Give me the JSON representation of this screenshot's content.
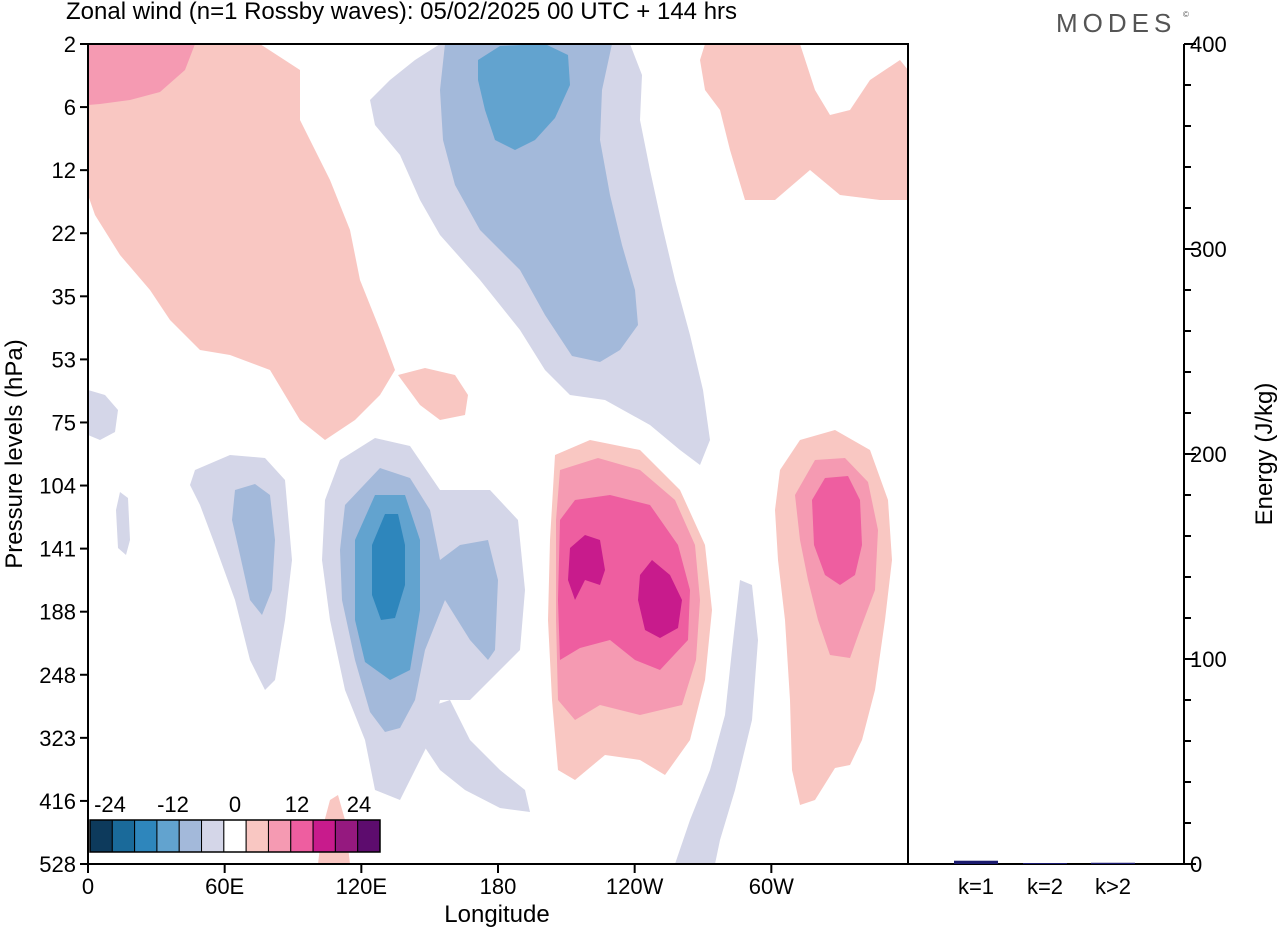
{
  "header": {
    "title": "Zonal wind (n=1 Rossby waves):  05/02/2025  00 UTC  + 144 hrs",
    "brand": "MODES",
    "brand_mark": "©"
  },
  "chart_data": [
    {
      "type": "heatmap",
      "title": "Zonal wind (n=1 Rossby waves):  05/02/2025  00 UTC  + 144 hrs",
      "xlabel": "Longitude",
      "ylabel": "Pressure levels (hPa)",
      "x_ticks": [
        "0",
        "60E",
        "120E",
        "180",
        "120W",
        "60W"
      ],
      "y_ticks": [
        "2",
        "6",
        "12",
        "22",
        "35",
        "53",
        "75",
        "104",
        "141",
        "188",
        "248",
        "323",
        "416",
        "528"
      ],
      "colorbar": {
        "tick_labels": [
          "-24",
          "-12",
          "0",
          "12",
          "24"
        ],
        "colors": [
          "#0d3a5c",
          "#1a6a9a",
          "#2e86bc",
          "#62a3cf",
          "#a3b9da",
          "#d4d6e8",
          "#ffffff",
          "#f9c7c2",
          "#f59ab2",
          "#ee5ea0",
          "#c81b8c",
          "#95197f",
          "#5d0c6e"
        ]
      },
      "colors": {
        "neg_weak": "#d4d6e8",
        "neg_mid": "#a3b9da",
        "neg_strong": "#62a3cf",
        "neg_max": "#2e86bc",
        "pos_weak": "#f9c7c2",
        "pos_mid": "#f59ab2",
        "pos_strong": "#ee5ea0",
        "pos_max": "#c81b8c"
      }
    },
    {
      "type": "bar",
      "categories": [
        "k=1",
        "k=2",
        "k>2"
      ],
      "values": [
        1.6,
        0.3,
        0.6
      ],
      "ylabel": "Energy (J/kg)",
      "ylim": [
        0,
        400
      ],
      "y_ticks": [
        "0",
        "100",
        "200",
        "300",
        "400"
      ],
      "bar_color": "#1a1a6e"
    }
  ]
}
